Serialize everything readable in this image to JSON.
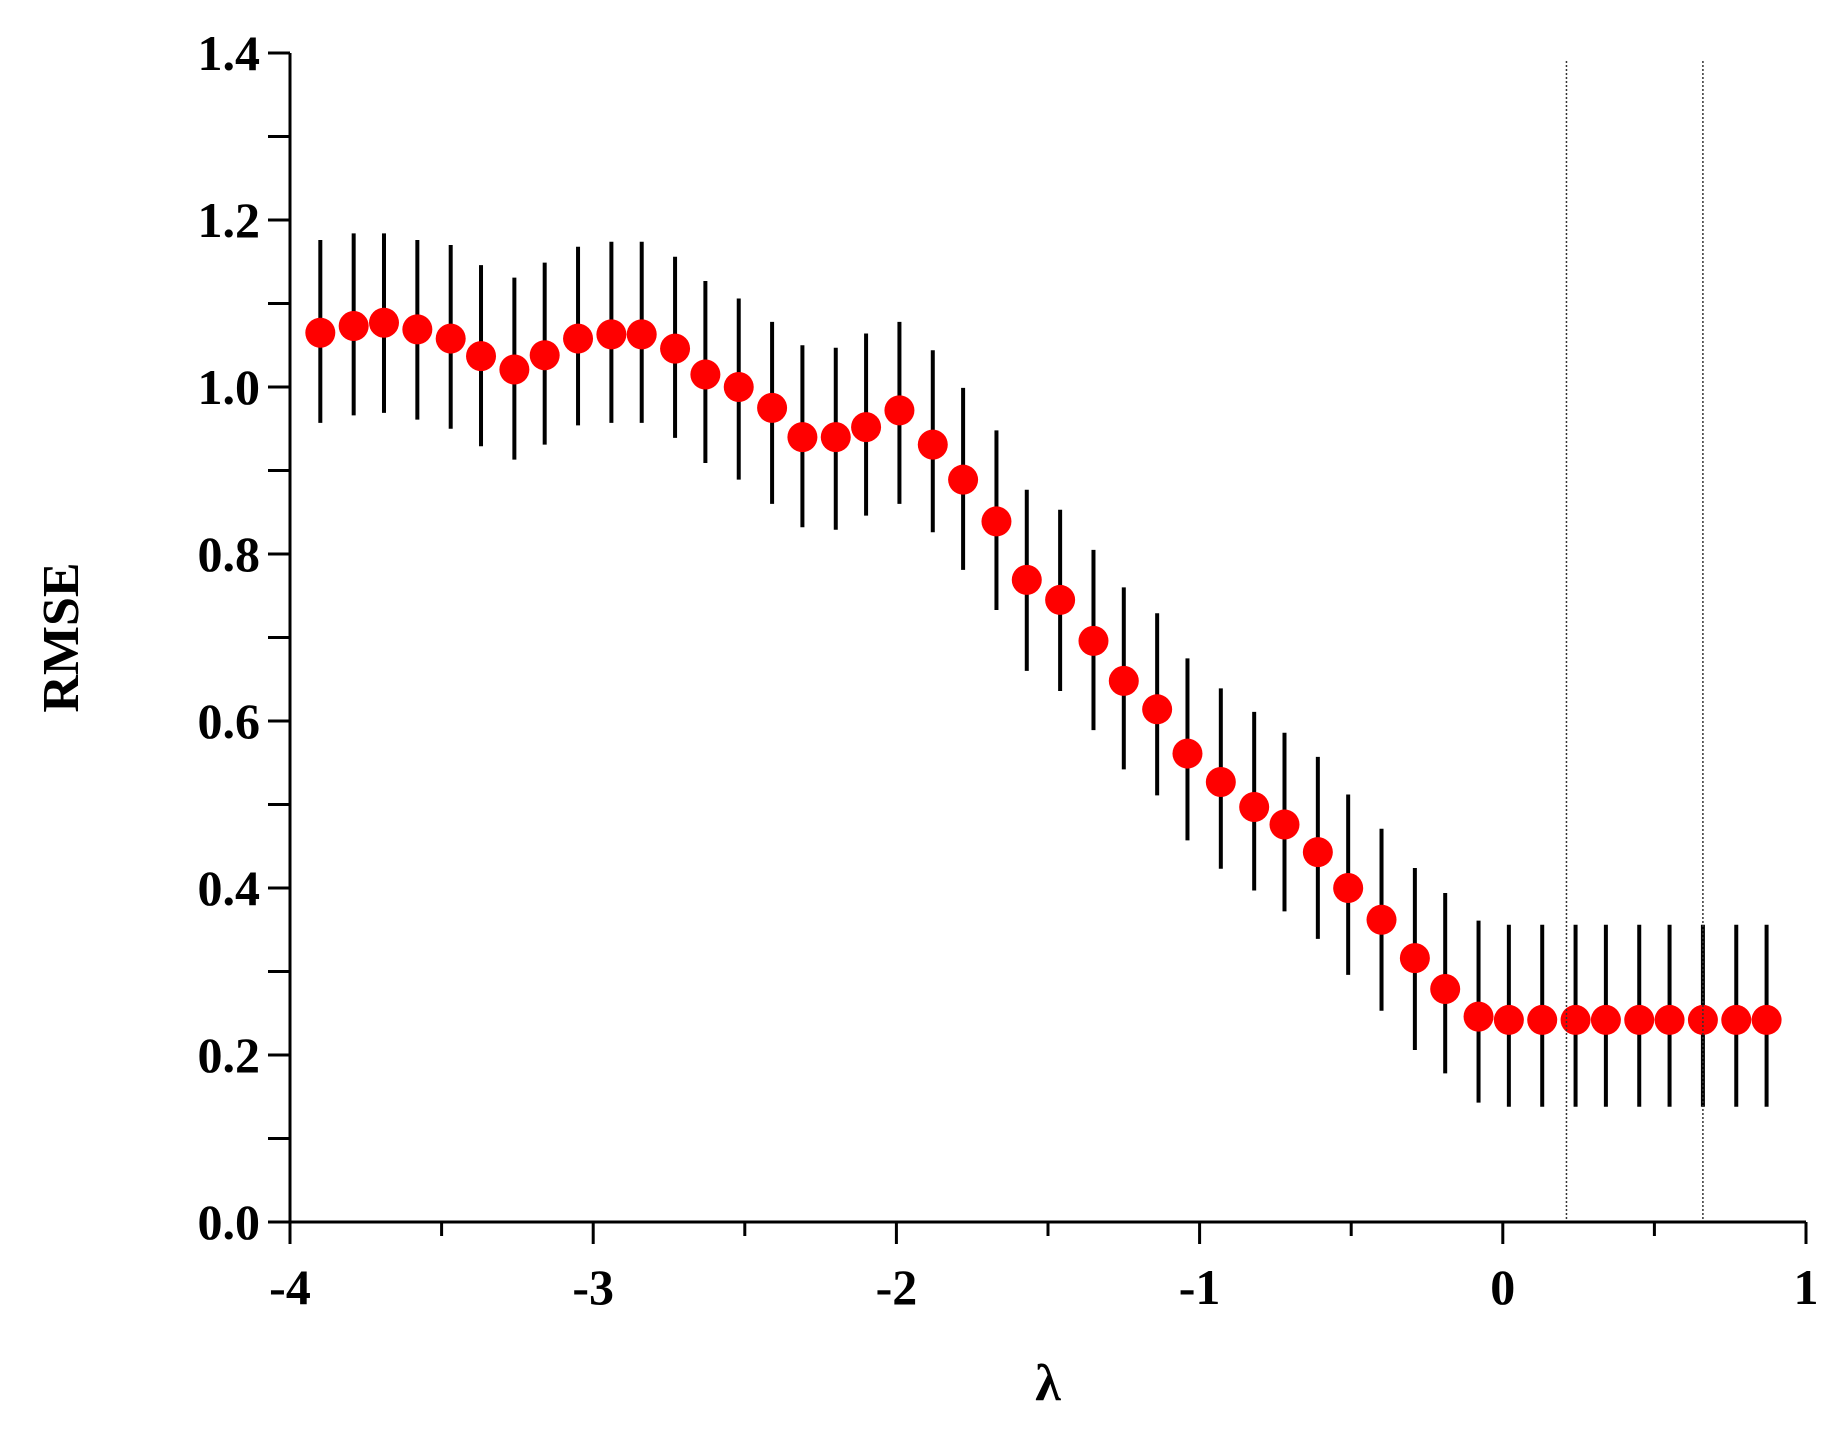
{
  "chart_data": {
    "type": "scatter",
    "title": "",
    "xlabel": "λ",
    "ylabel": "RMSE",
    "xlim": [
      -4,
      1
    ],
    "ylim": [
      0,
      1.4
    ],
    "x_ticks": [
      -4,
      -3,
      -2,
      -1,
      0,
      1
    ],
    "x_tick_labels": [
      "-4",
      "-3",
      "-2",
      "-1",
      "0",
      "1"
    ],
    "y_ticks": [
      0.0,
      0.2,
      0.4,
      0.6,
      0.8,
      1.0,
      1.2,
      1.4
    ],
    "y_tick_labels": [
      "0.0",
      "0.2",
      "0.4",
      "0.6",
      "0.8",
      "1.0",
      "1.2",
      "1.4"
    ],
    "grid": false,
    "legend": "none",
    "point_color": "#ff0000",
    "errorbar_color": "#000000",
    "reference_lines_x": [
      0.21,
      0.66
    ],
    "series": [
      {
        "x": [
          -3.9,
          -3.79,
          -3.69,
          -3.58,
          -3.47,
          -3.37,
          -3.26,
          -3.16,
          -3.05,
          -2.94,
          -2.84,
          -2.73,
          -2.63,
          -2.52,
          -2.41,
          -2.31,
          -2.2,
          -2.1,
          -1.99,
          -1.88,
          -1.78,
          -1.67,
          -1.57,
          -1.46,
          -1.35,
          -1.25,
          -1.14,
          -1.04,
          -0.93,
          -0.82,
          -0.72,
          -0.61,
          -0.51,
          -0.4,
          -0.29,
          -0.19,
          -0.08,
          0.02,
          0.13,
          0.24,
          0.34,
          0.45,
          0.55,
          0.66,
          0.77,
          0.87
        ],
        "y": [
          1.065,
          1.073,
          1.077,
          1.069,
          1.058,
          1.037,
          1.021,
          1.038,
          1.058,
          1.063,
          1.063,
          1.046,
          1.015,
          1.0,
          0.975,
          0.94,
          0.94,
          0.952,
          0.972,
          0.931,
          0.889,
          0.839,
          0.769,
          0.745,
          0.696,
          0.648,
          0.614,
          0.561,
          0.527,
          0.497,
          0.476,
          0.443,
          0.4,
          0.362,
          0.316,
          0.279,
          0.246,
          0.242,
          0.242,
          0.242,
          0.242,
          0.242,
          0.242,
          0.242,
          0.242,
          0.242
        ],
        "err_low": [
          0.957,
          0.966,
          0.969,
          0.961,
          0.95,
          0.929,
          0.913,
          0.931,
          0.954,
          0.957,
          0.957,
          0.939,
          0.909,
          0.889,
          0.86,
          0.832,
          0.829,
          0.846,
          0.86,
          0.826,
          0.781,
          0.733,
          0.66,
          0.636,
          0.589,
          0.542,
          0.511,
          0.457,
          0.423,
          0.397,
          0.372,
          0.339,
          0.296,
          0.253,
          0.206,
          0.178,
          0.143,
          0.138,
          0.138,
          0.138,
          0.138,
          0.138,
          0.138,
          0.138,
          0.138,
          0.138
        ],
        "err_high": [
          1.176,
          1.184,
          1.184,
          1.176,
          1.17,
          1.146,
          1.131,
          1.149,
          1.168,
          1.174,
          1.174,
          1.156,
          1.127,
          1.106,
          1.078,
          1.05,
          1.047,
          1.064,
          1.078,
          1.044,
          0.999,
          0.948,
          0.877,
          0.853,
          0.805,
          0.76,
          0.729,
          0.675,
          0.639,
          0.611,
          0.586,
          0.557,
          0.512,
          0.471,
          0.424,
          0.394,
          0.361,
          0.356,
          0.356,
          0.356,
          0.356,
          0.356,
          0.356,
          0.356,
          0.356,
          0.356
        ]
      }
    ]
  }
}
